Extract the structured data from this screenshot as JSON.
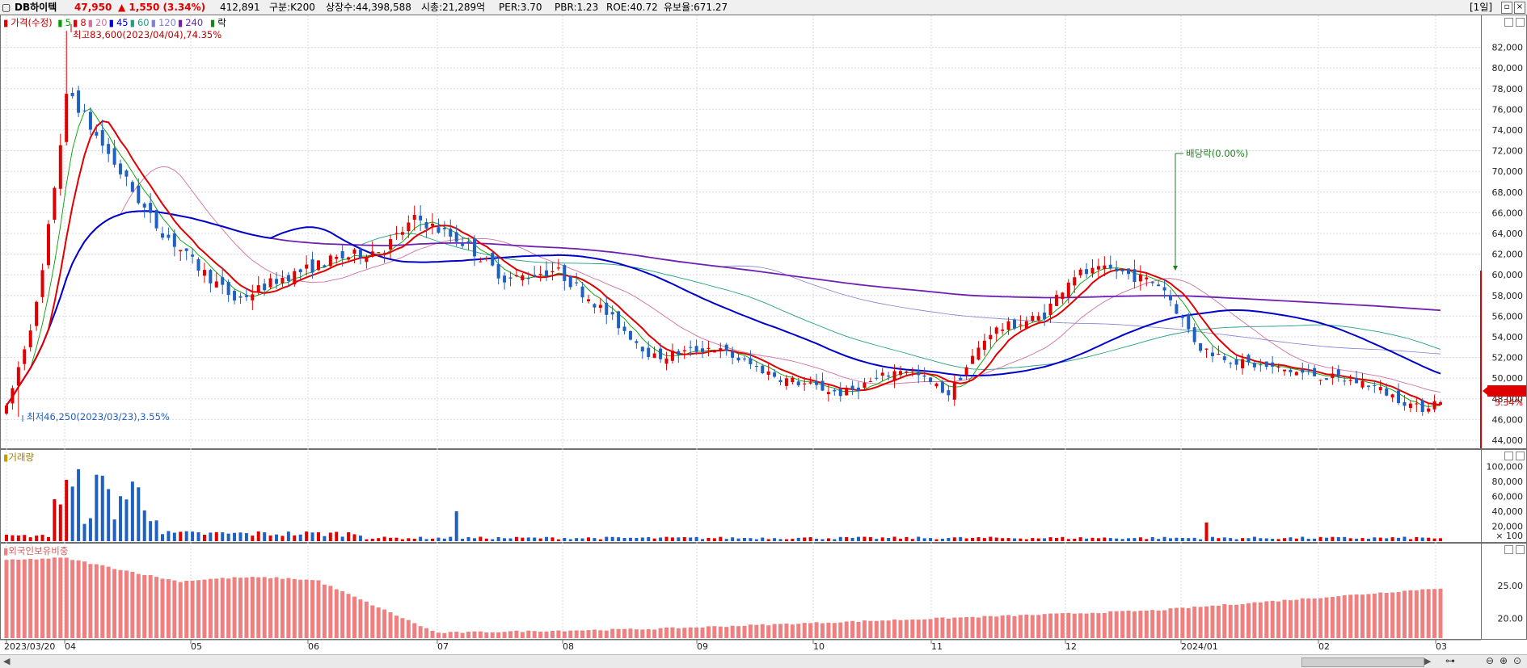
{
  "header": {
    "stock_name": "DB하이텍",
    "price": "47,950",
    "change": "▲ 1,550 (3.34%)",
    "volume": "412,891",
    "market": "구분:K200",
    "shares": "상장수:44,398,588",
    "market_cap": "시총:21,289억",
    "per": "PER:3.70",
    "pbr": "PBR:1.23",
    "roe": "ROE:40.72",
    "float": "유보율:671.27",
    "period": "[1일]"
  },
  "legend": {
    "price_label": "가격(수정)",
    "ma": [
      {
        "label": "5",
        "color": "#00a000"
      },
      {
        "label": "8",
        "color": "#e00000"
      },
      {
        "label": "20",
        "color": "#d070a0"
      },
      {
        "label": "45",
        "color": "#0000cc"
      },
      {
        "label": "60",
        "color": "#20a080"
      },
      {
        "label": "120",
        "color": "#8080d0"
      },
      {
        "label": "240",
        "color": "#7020b0"
      }
    ],
    "drop_label": "락"
  },
  "annotations": {
    "high": "최고83,600(2023/04/04),74.35%",
    "low": "최저46,250(2023/03/23),3.55%",
    "dividend": "배당락(0.00%)"
  },
  "price_axis": {
    "ticks": [
      "82,000",
      "80,000",
      "78,000",
      "76,000",
      "74,000",
      "72,000",
      "70,000",
      "68,000",
      "66,000",
      "64,000",
      "62,000",
      "60,000",
      "58,000",
      "56,000",
      "54,000",
      "52,000",
      "50,000",
      "48,000",
      "46,000",
      "44,000"
    ],
    "current_label": "47,950",
    "current_pct": "3.34%"
  },
  "volume_panel": {
    "title": "거래량",
    "ticks": [
      "100,000",
      "80,000",
      "60,000",
      "40,000",
      "20,000"
    ],
    "unit": "× 100"
  },
  "foreign_panel": {
    "title": "외국인보유비중",
    "ticks": [
      "25.00",
      "20.00"
    ]
  },
  "x_axis": [
    "2023/03/20",
    "04",
    "05",
    "06",
    "07",
    "08",
    "09",
    "10",
    "11",
    "12",
    "2024/01",
    "02",
    "03"
  ],
  "colors": {
    "up": "#e00000",
    "down": "#2060c0",
    "ma8": "#e00000",
    "ma45": "#0000cc",
    "ma240": "#7020b0",
    "foreign_bar": "#f08080",
    "grid": "#d8d8e8"
  },
  "chart_data": {
    "type": "candlestick",
    "period": "daily",
    "x_range": [
      "2023-03-20",
      "2024-03-04"
    ],
    "price_range": [
      44000,
      84000
    ],
    "price_samples": [
      {
        "date": "2023-03-20",
        "close": 47000
      },
      {
        "date": "2023-03-23",
        "low": 46250
      },
      {
        "date": "2023-03-28",
        "close": 58000
      },
      {
        "date": "2023-04-04",
        "high": 83600,
        "close": 78000
      },
      {
        "date": "2023-04-10",
        "close": 74000
      },
      {
        "date": "2023-04-25",
        "close": 65000
      },
      {
        "date": "2023-05-05",
        "close": 61000
      },
      {
        "date": "2023-05-15",
        "close": 57500
      },
      {
        "date": "2023-05-25",
        "close": 59500
      },
      {
        "date": "2023-06-08",
        "close": 61500
      },
      {
        "date": "2023-06-20",
        "close": 62500
      },
      {
        "date": "2023-06-28",
        "close": 65500
      },
      {
        "date": "2023-07-10",
        "close": 63000
      },
      {
        "date": "2023-07-20",
        "close": 59500
      },
      {
        "date": "2023-08-01",
        "close": 60500
      },
      {
        "date": "2023-08-10",
        "close": 57500
      },
      {
        "date": "2023-08-25",
        "close": 52000
      },
      {
        "date": "2023-09-08",
        "close": 53000
      },
      {
        "date": "2023-09-25",
        "close": 50000
      },
      {
        "date": "2023-10-10",
        "close": 48500
      },
      {
        "date": "2023-10-25",
        "close": 51000
      },
      {
        "date": "2023-11-05",
        "close": 48500
      },
      {
        "date": "2023-11-15",
        "close": 54500
      },
      {
        "date": "2023-11-28",
        "close": 56000
      },
      {
        "date": "2023-12-05",
        "close": 60000
      },
      {
        "date": "2023-12-15",
        "close": 60500
      },
      {
        "date": "2023-12-27",
        "close": 59000
      },
      {
        "date": "2024-01-05",
        "close": 53000
      },
      {
        "date": "2024-01-15",
        "close": 51500
      },
      {
        "date": "2024-01-30",
        "close": 50500
      },
      {
        "date": "2024-02-15",
        "close": 49500
      },
      {
        "date": "2024-02-28",
        "close": 47000
      },
      {
        "date": "2024-03-04",
        "close": 47950
      }
    ],
    "volume_range": [
      0,
      110000
    ],
    "volume_unit": "× 100",
    "foreign_ratio_range": [
      17,
      30
    ]
  }
}
